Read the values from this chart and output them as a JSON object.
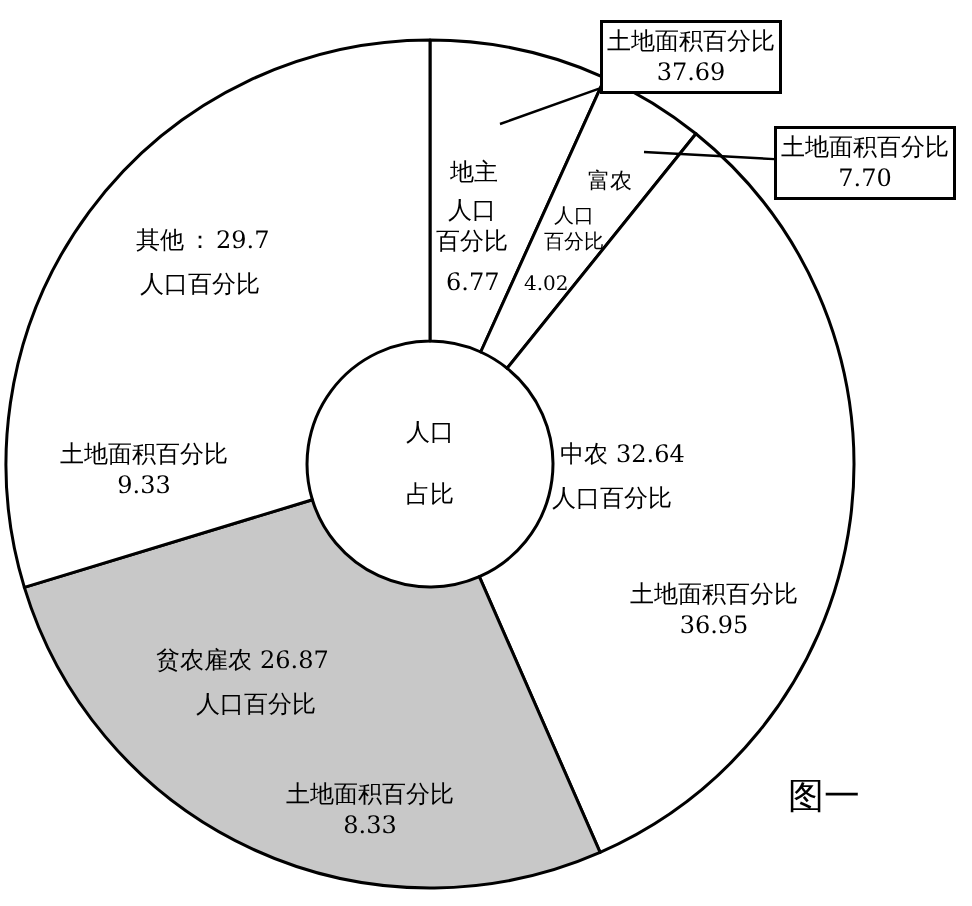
{
  "chart_data": {
    "type": "donut",
    "categories": [
      "地主",
      "富农",
      "中农",
      "贫农雇农",
      "其他"
    ],
    "values": [
      6.77,
      4.02,
      32.64,
      26.87,
      29.7
    ],
    "colors": [
      "#ffffff",
      "#ffffff",
      "#ffffff",
      "#c8c8c8",
      "#ffffff"
    ],
    "value_labels": [
      "6.77",
      "4.02",
      "32.64",
      "26.87",
      "29.7"
    ],
    "annotations": [
      "人口百分比",
      "人口百分比",
      "人口百分比",
      "人口百分比",
      "人口百分比",
      "土地面积百分比\n37.69",
      "土地面积百分比\n7.70",
      "土地面积百分比\n36.95",
      "土地面积百分比\n8.33",
      "土地面积百分比\n9.33",
      "人口占比",
      "图一",
      "："
    ],
    "legend": false
  }
}
